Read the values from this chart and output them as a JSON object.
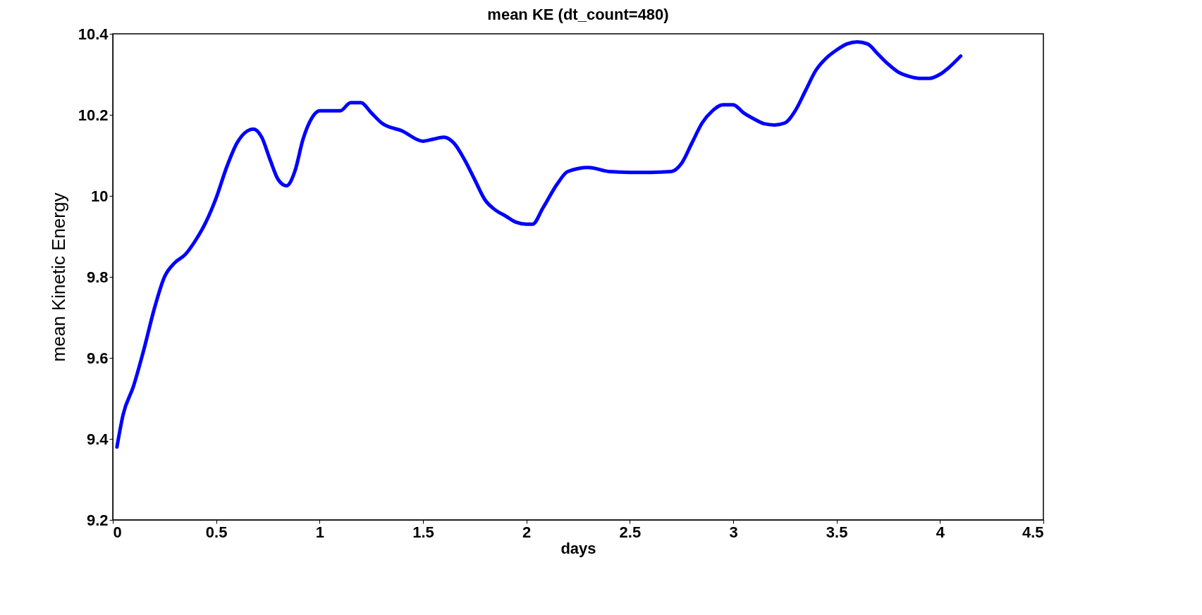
{
  "chart_data": {
    "type": "line",
    "title": "mean KE (dt_count=480)",
    "xlabel": "days",
    "ylabel": "mean Kinetic Energy",
    "x": [
      0.02,
      0.05,
      0.1,
      0.15,
      0.2,
      0.25,
      0.3,
      0.35,
      0.4,
      0.45,
      0.5,
      0.55,
      0.6,
      0.65,
      0.68,
      0.72,
      0.76,
      0.8,
      0.84,
      0.88,
      0.92,
      0.96,
      1.0,
      1.05,
      1.1,
      1.15,
      1.2,
      1.25,
      1.3,
      1.4,
      1.5,
      1.55,
      1.6,
      1.65,
      1.7,
      1.75,
      1.8,
      1.85,
      1.9,
      1.95,
      2.0,
      2.03,
      2.08,
      2.15,
      2.2,
      2.3,
      2.4,
      2.5,
      2.6,
      2.7,
      2.75,
      2.8,
      2.85,
      2.9,
      2.95,
      3.0,
      3.05,
      3.1,
      3.15,
      3.2,
      3.25,
      3.3,
      3.35,
      3.4,
      3.45,
      3.5,
      3.55,
      3.6,
      3.65,
      3.7,
      3.75,
      3.8,
      3.85,
      3.9,
      3.95,
      4.0,
      4.05,
      4.1
    ],
    "series": [
      {
        "color": "#0000ff",
        "values": [
          9.38,
          9.46,
          9.53,
          9.62,
          9.72,
          9.8,
          9.835,
          9.855,
          9.89,
          9.935,
          9.995,
          10.07,
          10.13,
          10.16,
          10.165,
          10.145,
          10.09,
          10.04,
          10.025,
          10.06,
          10.14,
          10.19,
          10.21,
          10.21,
          10.21,
          10.23,
          10.23,
          10.205,
          10.18,
          10.16,
          10.135,
          10.14,
          10.145,
          10.13,
          10.09,
          10.04,
          9.99,
          9.965,
          9.95,
          9.935,
          9.93,
          9.93,
          9.97,
          10.03,
          10.06,
          10.07,
          10.06,
          10.058,
          10.058,
          10.06,
          10.08,
          10.13,
          10.18,
          10.21,
          10.225,
          10.225,
          10.205,
          10.19,
          10.178,
          10.175,
          10.18,
          10.21,
          10.26,
          10.31,
          10.34,
          10.36,
          10.375,
          10.38,
          10.375,
          10.35,
          10.325,
          10.305,
          10.295,
          10.29,
          10.29,
          10.3,
          10.32,
          10.345
        ]
      }
    ],
    "xlim": [
      0,
      4.5
    ],
    "xticks": [
      0,
      0.5,
      1,
      1.5,
      2,
      2.5,
      3,
      3.5,
      4,
      4.5
    ],
    "ylim": [
      9.2,
      10.4
    ],
    "yticks": [
      9.2,
      9.4,
      9.6,
      9.8,
      10,
      10.2,
      10.4
    ],
    "grid": false,
    "marker": "none",
    "line_style": "solid"
  }
}
